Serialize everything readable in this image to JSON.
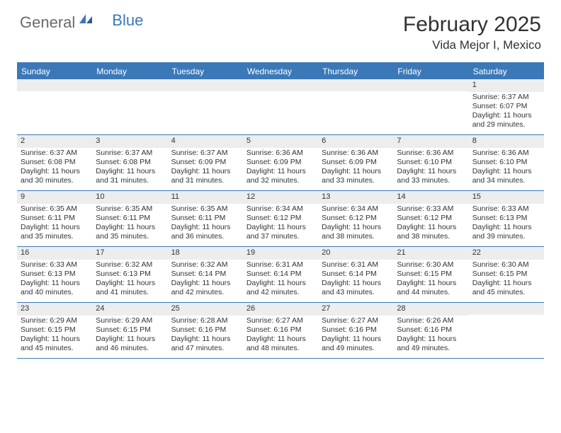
{
  "logo": {
    "part1": "General",
    "part2": "Blue"
  },
  "title": "February 2025",
  "location": "Vida Mejor I, Mexico",
  "colors": {
    "header_bar": "#3b78b8",
    "daynum_bg": "#ededed",
    "text": "#333333",
    "logo_gray": "#6a6a6a",
    "logo_blue": "#3b78b8"
  },
  "weekdays": [
    "Sunday",
    "Monday",
    "Tuesday",
    "Wednesday",
    "Thursday",
    "Friday",
    "Saturday"
  ],
  "weeks": [
    [
      {
        "n": "",
        "sunrise": "",
        "sunset": "",
        "daylight": ""
      },
      {
        "n": "",
        "sunrise": "",
        "sunset": "",
        "daylight": ""
      },
      {
        "n": "",
        "sunrise": "",
        "sunset": "",
        "daylight": ""
      },
      {
        "n": "",
        "sunrise": "",
        "sunset": "",
        "daylight": ""
      },
      {
        "n": "",
        "sunrise": "",
        "sunset": "",
        "daylight": ""
      },
      {
        "n": "",
        "sunrise": "",
        "sunset": "",
        "daylight": ""
      },
      {
        "n": "1",
        "sunrise": "Sunrise: 6:37 AM",
        "sunset": "Sunset: 6:07 PM",
        "daylight": "Daylight: 11 hours and 29 minutes."
      }
    ],
    [
      {
        "n": "2",
        "sunrise": "Sunrise: 6:37 AM",
        "sunset": "Sunset: 6:08 PM",
        "daylight": "Daylight: 11 hours and 30 minutes."
      },
      {
        "n": "3",
        "sunrise": "Sunrise: 6:37 AM",
        "sunset": "Sunset: 6:08 PM",
        "daylight": "Daylight: 11 hours and 31 minutes."
      },
      {
        "n": "4",
        "sunrise": "Sunrise: 6:37 AM",
        "sunset": "Sunset: 6:09 PM",
        "daylight": "Daylight: 11 hours and 31 minutes."
      },
      {
        "n": "5",
        "sunrise": "Sunrise: 6:36 AM",
        "sunset": "Sunset: 6:09 PM",
        "daylight": "Daylight: 11 hours and 32 minutes."
      },
      {
        "n": "6",
        "sunrise": "Sunrise: 6:36 AM",
        "sunset": "Sunset: 6:09 PM",
        "daylight": "Daylight: 11 hours and 33 minutes."
      },
      {
        "n": "7",
        "sunrise": "Sunrise: 6:36 AM",
        "sunset": "Sunset: 6:10 PM",
        "daylight": "Daylight: 11 hours and 33 minutes."
      },
      {
        "n": "8",
        "sunrise": "Sunrise: 6:36 AM",
        "sunset": "Sunset: 6:10 PM",
        "daylight": "Daylight: 11 hours and 34 minutes."
      }
    ],
    [
      {
        "n": "9",
        "sunrise": "Sunrise: 6:35 AM",
        "sunset": "Sunset: 6:11 PM",
        "daylight": "Daylight: 11 hours and 35 minutes."
      },
      {
        "n": "10",
        "sunrise": "Sunrise: 6:35 AM",
        "sunset": "Sunset: 6:11 PM",
        "daylight": "Daylight: 11 hours and 35 minutes."
      },
      {
        "n": "11",
        "sunrise": "Sunrise: 6:35 AM",
        "sunset": "Sunset: 6:11 PM",
        "daylight": "Daylight: 11 hours and 36 minutes."
      },
      {
        "n": "12",
        "sunrise": "Sunrise: 6:34 AM",
        "sunset": "Sunset: 6:12 PM",
        "daylight": "Daylight: 11 hours and 37 minutes."
      },
      {
        "n": "13",
        "sunrise": "Sunrise: 6:34 AM",
        "sunset": "Sunset: 6:12 PM",
        "daylight": "Daylight: 11 hours and 38 minutes."
      },
      {
        "n": "14",
        "sunrise": "Sunrise: 6:33 AM",
        "sunset": "Sunset: 6:12 PM",
        "daylight": "Daylight: 11 hours and 38 minutes."
      },
      {
        "n": "15",
        "sunrise": "Sunrise: 6:33 AM",
        "sunset": "Sunset: 6:13 PM",
        "daylight": "Daylight: 11 hours and 39 minutes."
      }
    ],
    [
      {
        "n": "16",
        "sunrise": "Sunrise: 6:33 AM",
        "sunset": "Sunset: 6:13 PM",
        "daylight": "Daylight: 11 hours and 40 minutes."
      },
      {
        "n": "17",
        "sunrise": "Sunrise: 6:32 AM",
        "sunset": "Sunset: 6:13 PM",
        "daylight": "Daylight: 11 hours and 41 minutes."
      },
      {
        "n": "18",
        "sunrise": "Sunrise: 6:32 AM",
        "sunset": "Sunset: 6:14 PM",
        "daylight": "Daylight: 11 hours and 42 minutes."
      },
      {
        "n": "19",
        "sunrise": "Sunrise: 6:31 AM",
        "sunset": "Sunset: 6:14 PM",
        "daylight": "Daylight: 11 hours and 42 minutes."
      },
      {
        "n": "20",
        "sunrise": "Sunrise: 6:31 AM",
        "sunset": "Sunset: 6:14 PM",
        "daylight": "Daylight: 11 hours and 43 minutes."
      },
      {
        "n": "21",
        "sunrise": "Sunrise: 6:30 AM",
        "sunset": "Sunset: 6:15 PM",
        "daylight": "Daylight: 11 hours and 44 minutes."
      },
      {
        "n": "22",
        "sunrise": "Sunrise: 6:30 AM",
        "sunset": "Sunset: 6:15 PM",
        "daylight": "Daylight: 11 hours and 45 minutes."
      }
    ],
    [
      {
        "n": "23",
        "sunrise": "Sunrise: 6:29 AM",
        "sunset": "Sunset: 6:15 PM",
        "daylight": "Daylight: 11 hours and 45 minutes."
      },
      {
        "n": "24",
        "sunrise": "Sunrise: 6:29 AM",
        "sunset": "Sunset: 6:15 PM",
        "daylight": "Daylight: 11 hours and 46 minutes."
      },
      {
        "n": "25",
        "sunrise": "Sunrise: 6:28 AM",
        "sunset": "Sunset: 6:16 PM",
        "daylight": "Daylight: 11 hours and 47 minutes."
      },
      {
        "n": "26",
        "sunrise": "Sunrise: 6:27 AM",
        "sunset": "Sunset: 6:16 PM",
        "daylight": "Daylight: 11 hours and 48 minutes."
      },
      {
        "n": "27",
        "sunrise": "Sunrise: 6:27 AM",
        "sunset": "Sunset: 6:16 PM",
        "daylight": "Daylight: 11 hours and 49 minutes."
      },
      {
        "n": "28",
        "sunrise": "Sunrise: 6:26 AM",
        "sunset": "Sunset: 6:16 PM",
        "daylight": "Daylight: 11 hours and 49 minutes."
      },
      {
        "n": "",
        "sunrise": "",
        "sunset": "",
        "daylight": ""
      }
    ]
  ]
}
